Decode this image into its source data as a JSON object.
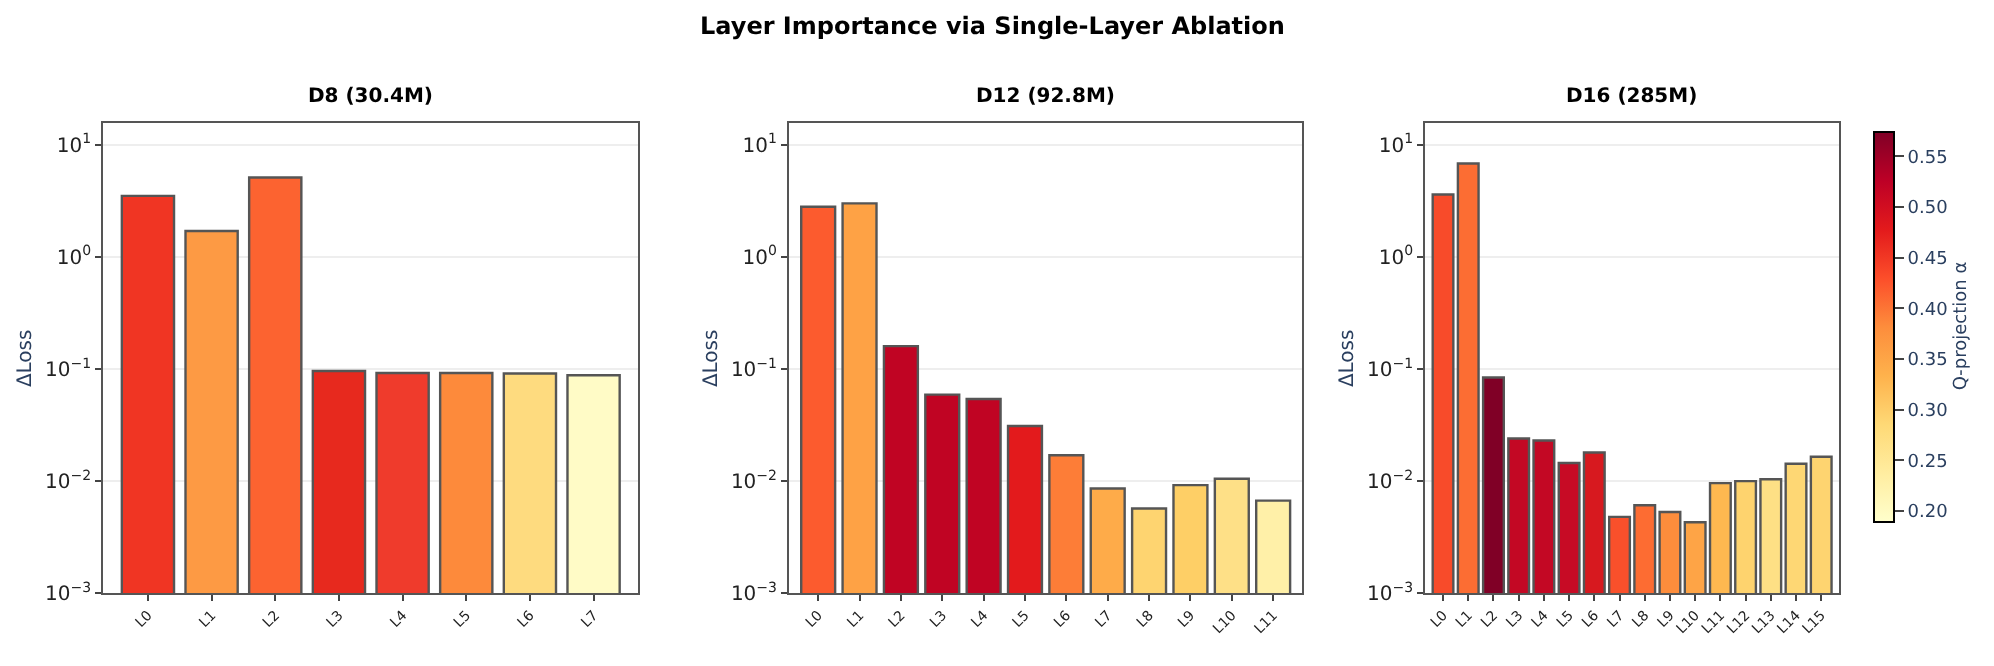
{
  "chart_data": [
    {
      "type": "bar",
      "title": "D8 (30.4M)",
      "ylabel": "ΔLoss",
      "annotations": [
        "Layer Importance via Single-Layer Ablation"
      ],
      "log": "y",
      "grid": "y",
      "categories": [
        "L0",
        "L1",
        "L2",
        "L3",
        "L4",
        "L5",
        "L6",
        "L7"
      ],
      "values": [
        3.5,
        1.7,
        5.1,
        0.096,
        0.092,
        0.092,
        0.091,
        0.088
      ],
      "colors": [
        "#f03523",
        "#fd9a44",
        "#fc6330",
        "#e7291e",
        "#ef3b2c",
        "#fd8a3b",
        "#fedb7f",
        "#fffbc6"
      ],
      "ylim": [
        0.001,
        15.5
      ],
      "yticks": [
        {
          "value": 0.001,
          "label": "10$^{−3}$"
        },
        {
          "value": 0.01,
          "label": "10$^{−2}$"
        },
        {
          "value": 0.1,
          "label": "10$^{−1}$"
        },
        {
          "value": 1,
          "label": "10$^{0}$"
        },
        {
          "value": 10,
          "label": "10$^{1}$"
        }
      ]
    },
    {
      "type": "bar",
      "title": "D12 (92.8M)",
      "ylabel": "ΔLoss",
      "log": "y",
      "grid": "y",
      "categories": [
        "L0",
        "L1",
        "L2",
        "L3",
        "L4",
        "L5",
        "L6",
        "L7",
        "L8",
        "L9",
        "L10",
        "L11"
      ],
      "values": [
        2.8,
        3.0,
        0.16,
        0.059,
        0.054,
        0.031,
        0.017,
        0.0086,
        0.0057,
        0.0092,
        0.0105,
        0.0067
      ],
      "colors": [
        "#fc5b2e",
        "#fea245",
        "#c00423",
        "#c00423",
        "#c00423",
        "#e31a1c",
        "#fd7d37",
        "#feab49",
        "#fed470",
        "#fecf66",
        "#fee087",
        "#fff0a8"
      ],
      "ylim": [
        0.001,
        15.5
      ],
      "yticks": [
        {
          "value": 0.001,
          "label": "10$^{−3}$"
        },
        {
          "value": 0.01,
          "label": "10$^{−2}$"
        },
        {
          "value": 0.1,
          "label": "10$^{−1}$"
        },
        {
          "value": 1,
          "label": "10$^{0}$"
        },
        {
          "value": 10,
          "label": "10$^{1}$"
        }
      ]
    },
    {
      "type": "bar",
      "title": "D16 (285M)",
      "ylabel": "ΔLoss",
      "log": "y",
      "grid": "y",
      "clabel": "Q-projection α",
      "clim": [
        0.19,
        0.575
      ],
      "cticks": [
        {
          "value": 0.2,
          "label": "0.20"
        },
        0.25,
        {
          "value": 0.3,
          "label": "0.30"
        },
        0.35,
        {
          "value": 0.4,
          "label": "0.40"
        },
        0.45,
        {
          "value": 0.5,
          "label": "0.50"
        },
        0.55
      ],
      "categories": [
        "L0",
        "L1",
        "L2",
        "L3",
        "L4",
        "L5",
        "L6",
        "L7",
        "L8",
        "L9",
        "L10",
        "L11",
        "L12",
        "L13",
        "L14",
        "L15"
      ],
      "values": [
        3.6,
        6.8,
        0.084,
        0.024,
        0.023,
        0.0145,
        0.018,
        0.0048,
        0.0061,
        0.0053,
        0.0043,
        0.0096,
        0.01,
        0.0104,
        0.0143,
        0.0165
      ],
      "colors": [
        "#f84b2a",
        "#fc6d33",
        "#800026",
        "#c30824",
        "#c30824",
        "#c70b25",
        "#d7191f",
        "#f9502b",
        "#fd6c32",
        "#fd8d3c",
        "#fea446",
        "#feb850",
        "#fed36e",
        "#fee085",
        "#fed774",
        "#fed470"
      ],
      "ylim": [
        0.001,
        15.5
      ],
      "yticks": [
        {
          "value": 0.001,
          "label": "10$^{−3}$"
        },
        {
          "value": 0.01,
          "label": "10$^{−2}$"
        },
        {
          "value": 0.1,
          "label": "10$^{−1}$"
        },
        {
          "value": 1,
          "label": "10$^{0}$"
        },
        {
          "value": 10,
          "label": "10$^{1}$"
        }
      ]
    }
  ]
}
